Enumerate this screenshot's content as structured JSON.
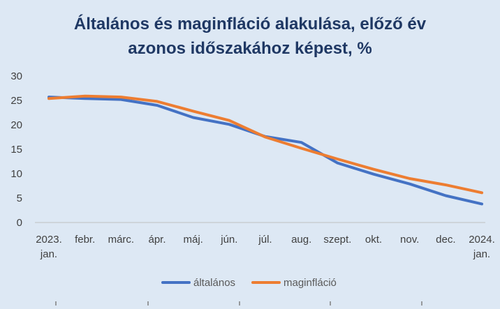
{
  "chart_data": {
    "type": "line",
    "title_lines": [
      "Általános és maginfláció alakulása, előző év",
      "azonos időszakához képest, %"
    ],
    "ylim": [
      0,
      30
    ],
    "yticks": [
      0,
      5,
      10,
      15,
      20,
      25,
      30
    ],
    "categories": [
      [
        "2023.",
        "jan."
      ],
      [
        "febr."
      ],
      [
        "márc."
      ],
      [
        "ápr."
      ],
      [
        "máj."
      ],
      [
        "jún."
      ],
      [
        "júl."
      ],
      [
        "aug."
      ],
      [
        "szept."
      ],
      [
        "okt."
      ],
      [
        "nov."
      ],
      [
        "dec."
      ],
      [
        "2024.",
        "jan."
      ]
    ],
    "series": [
      {
        "name": "általános",
        "color": "#4472c4",
        "values": [
          25.7,
          25.4,
          25.2,
          24.0,
          21.5,
          20.1,
          17.6,
          16.4,
          12.2,
          9.9,
          7.9,
          5.5,
          3.8
        ]
      },
      {
        "name": "maginfláció",
        "color": "#ed7d31",
        "values": [
          25.4,
          25.9,
          25.7,
          24.8,
          22.8,
          20.9,
          17.5,
          15.2,
          13.0,
          10.9,
          9.0,
          7.7,
          6.1
        ]
      }
    ],
    "legend_position": "bottom",
    "grid": false
  }
}
